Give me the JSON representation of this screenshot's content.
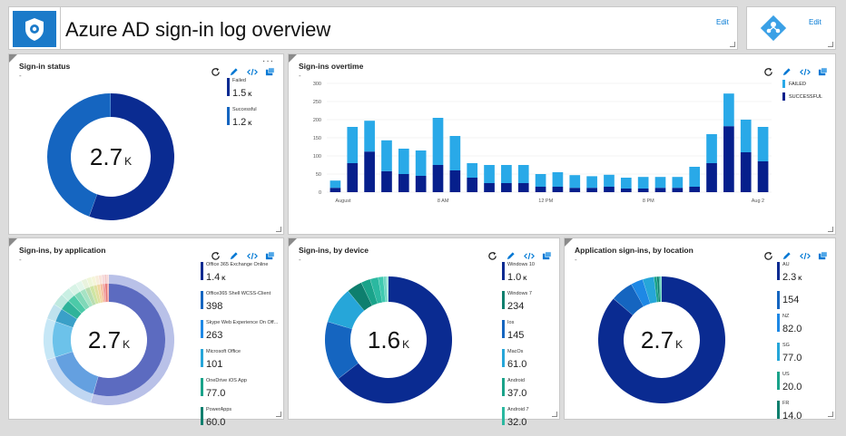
{
  "header": {
    "title": "Azure AD sign-in log overview",
    "edit_label": "Edit",
    "edit2_label": "Edit"
  },
  "colors": {
    "failed": "#29a9e8",
    "success": "#061f8c",
    "donut_dark": "#0a2b91",
    "donut_blue": "#1565c0"
  },
  "signin_status": {
    "title": "Sign-in status",
    "center": "2.7",
    "unit": "K",
    "items": [
      {
        "name": "Failed",
        "value": "1.5",
        "unit": "K",
        "color": "#0a2b91"
      },
      {
        "name": "Successful",
        "value": "1.2",
        "unit": "K",
        "color": "#1565c0"
      }
    ],
    "slices": [
      0.55,
      0.45
    ]
  },
  "overtime": {
    "title": "Sign-ins overtime",
    "legend_failed": "FAILED",
    "legend_success": "SUCCESSFUL",
    "chart_data": {
      "type": "bar",
      "stacked": true,
      "x_ticks": [
        "August",
        "8 AM",
        "12 PM",
        "8 PM",
        "Aug 2"
      ],
      "y_ticks": [
        0,
        50,
        100,
        150,
        200,
        250,
        300
      ],
      "ylim": [
        0,
        300
      ],
      "series": [
        {
          "name": "SUCCESSFUL",
          "values": [
            12,
            80,
            112,
            58,
            50,
            45,
            75,
            60,
            40,
            25,
            25,
            25,
            15,
            15,
            12,
            12,
            15,
            10,
            10,
            12,
            12,
            15,
            80,
            182,
            110,
            85
          ]
        },
        {
          "name": "FAILED",
          "values": [
            20,
            100,
            85,
            85,
            70,
            70,
            130,
            95,
            40,
            50,
            50,
            50,
            35,
            40,
            35,
            32,
            33,
            30,
            32,
            30,
            30,
            55,
            80,
            90,
            90,
            95
          ]
        }
      ]
    }
  },
  "by_app": {
    "title": "Sign-ins, by application",
    "center": "2.7",
    "unit": "K",
    "items": [
      {
        "name": "Office 365 Exchange Online",
        "value": "1.4",
        "unit": "K",
        "color": "#0a2b91"
      },
      {
        "name": "Office365 Shell WCSS-Client",
        "value": "398",
        "unit": "",
        "color": "#1565c0"
      },
      {
        "name": "Skype Web Experience On Off...",
        "value": "263",
        "unit": "",
        "color": "#1e88e5"
      },
      {
        "name": "Microsoft Office",
        "value": "101",
        "unit": "",
        "color": "#26a6d9"
      },
      {
        "name": "OneDrive iOS App",
        "value": "77.0",
        "unit": "",
        "color": "#1aa38a"
      },
      {
        "name": "PowerApps",
        "value": "60.0",
        "unit": "",
        "color": "#0e7f6e"
      }
    ]
  },
  "by_device": {
    "title": "Sign-ins, by device",
    "center": "1.6",
    "unit": "K",
    "items": [
      {
        "name": "Windows 10",
        "value": "1.0",
        "unit": "K",
        "color": "#0a2b91"
      },
      {
        "name": "Windows 7",
        "value": "234",
        "unit": "",
        "color": "#0e7f6e"
      },
      {
        "name": "Ios",
        "value": "145",
        "unit": "",
        "color": "#1565c0"
      },
      {
        "name": "MacOs",
        "value": "61.0",
        "unit": "",
        "color": "#26a6d9"
      },
      {
        "name": "Android",
        "value": "37.0",
        "unit": "",
        "color": "#1aa38a"
      },
      {
        "name": "Android 7",
        "value": "32.0",
        "unit": "",
        "color": "#2bb8a0"
      }
    ]
  },
  "by_location": {
    "title": "Application sign-ins, by location",
    "center": "2.7",
    "unit": "K",
    "items": [
      {
        "name": "AU",
        "value": "2.3",
        "unit": "K",
        "color": "#0a2b91"
      },
      {
        "name": "",
        "value": "154",
        "unit": "",
        "color": "#1565c0"
      },
      {
        "name": "NZ",
        "value": "82.0",
        "unit": "",
        "color": "#1e88e5"
      },
      {
        "name": "SG",
        "value": "77.0",
        "unit": "",
        "color": "#26a6d9"
      },
      {
        "name": "US",
        "value": "20.0",
        "unit": "",
        "color": "#1aa38a"
      },
      {
        "name": "FR",
        "value": "14.0",
        "unit": "",
        "color": "#0e7f6e"
      }
    ]
  },
  "icons": [
    "refresh-icon",
    "pencil-icon",
    "code-icon",
    "pin-icon"
  ]
}
